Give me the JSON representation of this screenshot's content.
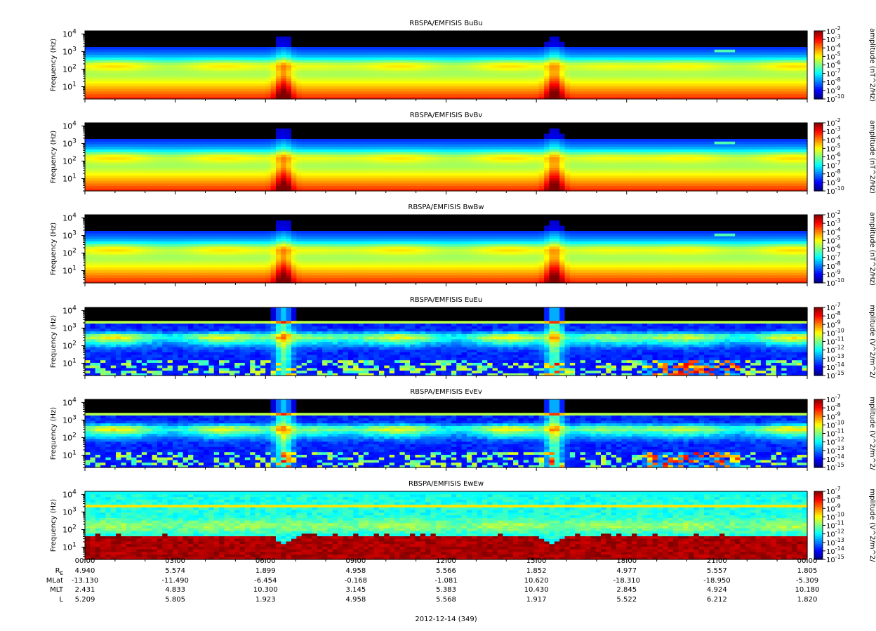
{
  "chart_data": [
    {
      "type": "heatmap",
      "title": "RBSPA/EMFISIS  BuBu",
      "ylabel": "Frequency (Hz)",
      "yscale": "log",
      "ylim": [
        2,
        15000
      ],
      "yticks": [
        {
          "v": 10,
          "label": "10",
          "sup": "1"
        },
        {
          "v": 100,
          "label": "10",
          "sup": "2"
        },
        {
          "v": 1000,
          "label": "10",
          "sup": "3"
        },
        {
          "v": 10000,
          "label": "10",
          "sup": "4"
        }
      ],
      "colorbar": {
        "label": "amplitude (nT^2/Hz)",
        "scale": "log",
        "range_exp": [
          -10,
          -2
        ],
        "ticks": [
          {
            "label": "10",
            "sup": "-2",
            "e": -2
          },
          {
            "label": "10",
            "sup": "-3",
            "e": -3
          },
          {
            "label": "10",
            "sup": "-4",
            "e": -4
          },
          {
            "label": "10",
            "sup": "-5",
            "e": -5
          },
          {
            "label": "10",
            "sup": "-6",
            "e": -6
          },
          {
            "label": "10",
            "sup": "-7",
            "e": -7
          },
          {
            "label": "10",
            "sup": "-8",
            "e": -8
          },
          {
            "label": "10",
            "sup": "-9",
            "e": -9
          },
          {
            "label": "10",
            "sup": "-10",
            "e": -10
          }
        ]
      }
    },
    {
      "type": "heatmap",
      "title": "RBSPA/EMFISIS  BvBv",
      "ylabel": "Frequency (Hz)",
      "yscale": "log",
      "ylim": [
        2,
        15000
      ],
      "yticks": [
        {
          "v": 10,
          "label": "10",
          "sup": "1"
        },
        {
          "v": 100,
          "label": "10",
          "sup": "2"
        },
        {
          "v": 1000,
          "label": "10",
          "sup": "3"
        },
        {
          "v": 10000,
          "label": "10",
          "sup": "4"
        }
      ],
      "colorbar": {
        "label": "amplitude (nT^2/Hz)",
        "scale": "log",
        "range_exp": [
          -10,
          -2
        ],
        "ticks": [
          {
            "label": "10",
            "sup": "-2",
            "e": -2
          },
          {
            "label": "10",
            "sup": "-3",
            "e": -3
          },
          {
            "label": "10",
            "sup": "-4",
            "e": -4
          },
          {
            "label": "10",
            "sup": "-5",
            "e": -5
          },
          {
            "label": "10",
            "sup": "-6",
            "e": -6
          },
          {
            "label": "10",
            "sup": "-7",
            "e": -7
          },
          {
            "label": "10",
            "sup": "-8",
            "e": -8
          },
          {
            "label": "10",
            "sup": "-9",
            "e": -9
          },
          {
            "label": "10",
            "sup": "-10",
            "e": -10
          }
        ]
      }
    },
    {
      "type": "heatmap",
      "title": "RBSPA/EMFISIS  BwBw",
      "ylabel": "Frequency (Hz)",
      "yscale": "log",
      "ylim": [
        2,
        15000
      ],
      "yticks": [
        {
          "v": 10,
          "label": "10",
          "sup": "1"
        },
        {
          "v": 100,
          "label": "10",
          "sup": "2"
        },
        {
          "v": 1000,
          "label": "10",
          "sup": "3"
        },
        {
          "v": 10000,
          "label": "10",
          "sup": "4"
        }
      ],
      "colorbar": {
        "label": "amplitude (nT^2/Hz)",
        "scale": "log",
        "range_exp": [
          -10,
          -2
        ],
        "ticks": [
          {
            "label": "10",
            "sup": "-2",
            "e": -2
          },
          {
            "label": "10",
            "sup": "-3",
            "e": -3
          },
          {
            "label": "10",
            "sup": "-4",
            "e": -4
          },
          {
            "label": "10",
            "sup": "-5",
            "e": -5
          },
          {
            "label": "10",
            "sup": "-6",
            "e": -6
          },
          {
            "label": "10",
            "sup": "-7",
            "e": -7
          },
          {
            "label": "10",
            "sup": "-8",
            "e": -8
          },
          {
            "label": "10",
            "sup": "-9",
            "e": -9
          },
          {
            "label": "10",
            "sup": "-10",
            "e": -10
          }
        ]
      }
    },
    {
      "type": "heatmap",
      "title": "RBSPA/EMFISIS  EuEu",
      "ylabel": "Frequency (Hz)",
      "yscale": "log",
      "ylim": [
        2,
        15000
      ],
      "yticks": [
        {
          "v": 10,
          "label": "10",
          "sup": "1"
        },
        {
          "v": 100,
          "label": "10",
          "sup": "2"
        },
        {
          "v": 1000,
          "label": "10",
          "sup": "3"
        },
        {
          "v": 10000,
          "label": "10",
          "sup": "4"
        }
      ],
      "colorbar": {
        "label": "mplitude (V^2/m^2/",
        "scale": "log",
        "range_exp": [
          -15,
          -7
        ],
        "ticks": [
          {
            "label": "10",
            "sup": "-7",
            "e": -7
          },
          {
            "label": "10",
            "sup": "-8",
            "e": -8
          },
          {
            "label": "10",
            "sup": "-9",
            "e": -9
          },
          {
            "label": "10",
            "sup": "-10",
            "e": -10
          },
          {
            "label": "10",
            "sup": "-11",
            "e": -11
          },
          {
            "label": "10",
            "sup": "-12",
            "e": -12
          },
          {
            "label": "10",
            "sup": "-13",
            "e": -13
          },
          {
            "label": "10",
            "sup": "-14",
            "e": -14
          },
          {
            "label": "10",
            "sup": "-15",
            "e": -15
          }
        ]
      }
    },
    {
      "type": "heatmap",
      "title": "RBSPA/EMFISIS  EvEv",
      "ylabel": "Frequency (Hz)",
      "yscale": "log",
      "ylim": [
        2,
        15000
      ],
      "yticks": [
        {
          "v": 10,
          "label": "10",
          "sup": "1"
        },
        {
          "v": 100,
          "label": "10",
          "sup": "2"
        },
        {
          "v": 1000,
          "label": "10",
          "sup": "3"
        },
        {
          "v": 10000,
          "label": "10",
          "sup": "4"
        }
      ],
      "colorbar": {
        "label": "mplitude (V^2/m^2/",
        "scale": "log",
        "range_exp": [
          -15,
          -7
        ],
        "ticks": [
          {
            "label": "10",
            "sup": "-7",
            "e": -7
          },
          {
            "label": "10",
            "sup": "-8",
            "e": -8
          },
          {
            "label": "10",
            "sup": "-9",
            "e": -9
          },
          {
            "label": "10",
            "sup": "-10",
            "e": -10
          },
          {
            "label": "10",
            "sup": "-11",
            "e": -11
          },
          {
            "label": "10",
            "sup": "-12",
            "e": -12
          },
          {
            "label": "10",
            "sup": "-13",
            "e": -13
          },
          {
            "label": "10",
            "sup": "-14",
            "e": -14
          },
          {
            "label": "10",
            "sup": "-15",
            "e": -15
          }
        ]
      }
    },
    {
      "type": "heatmap",
      "title": "RBSPA/EMFISIS  EwEw",
      "ylabel": "Frequency (Hz)",
      "yscale": "log",
      "ylim": [
        2,
        15000
      ],
      "yticks": [
        {
          "v": 10,
          "label": "10",
          "sup": "1"
        },
        {
          "v": 100,
          "label": "10",
          "sup": "2"
        },
        {
          "v": 1000,
          "label": "10",
          "sup": "3"
        },
        {
          "v": 10000,
          "label": "10",
          "sup": "4"
        }
      ],
      "colorbar": {
        "label": "mplitude (V^2/m^2/",
        "scale": "log",
        "range_exp": [
          -15,
          -7
        ],
        "ticks": [
          {
            "label": "10",
            "sup": "-7",
            "e": -7
          },
          {
            "label": "10",
            "sup": "-8",
            "e": -8
          },
          {
            "label": "10",
            "sup": "-9",
            "e": -9
          },
          {
            "label": "10",
            "sup": "-10",
            "e": -10
          },
          {
            "label": "10",
            "sup": "-11",
            "e": -11
          },
          {
            "label": "10",
            "sup": "-12",
            "e": -12
          },
          {
            "label": "10",
            "sup": "-13",
            "e": -13
          },
          {
            "label": "10",
            "sup": "-14",
            "e": -14
          },
          {
            "label": "10",
            "sup": "-15",
            "e": -15
          }
        ]
      }
    }
  ],
  "x_axis": {
    "date_label": "2012-12-14 (349)",
    "row_labels": [
      {
        "text": "R",
        "sub": "E"
      },
      {
        "text": "MLat",
        "sub": ""
      },
      {
        "text": "MLT",
        "sub": ""
      },
      {
        "text": "L",
        "sub": ""
      }
    ],
    "ticks": [
      {
        "time": "00:00",
        "hours": 0,
        "values": [
          "4.940",
          "-13.130",
          "2.431",
          "5.209"
        ]
      },
      {
        "time": "03:00",
        "hours": 3,
        "values": [
          "5.574",
          "-11.490",
          "4.833",
          "5.805"
        ]
      },
      {
        "time": "06:00",
        "hours": 6,
        "values": [
          "1.899",
          "-6.454",
          "10.300",
          "1.923"
        ]
      },
      {
        "time": "09:00",
        "hours": 9,
        "values": [
          "4.958",
          "-0.168",
          "3.145",
          "4.958"
        ]
      },
      {
        "time": "12:00",
        "hours": 12,
        "values": [
          "5.566",
          "-1.081",
          "5.383",
          "5.568"
        ]
      },
      {
        "time": "15:00",
        "hours": 15,
        "values": [
          "1.852",
          "10.620",
          "10.430",
          "1.917"
        ]
      },
      {
        "time": "18:00",
        "hours": 18,
        "values": [
          "4.977",
          "-18.310",
          "2.845",
          "5.522"
        ]
      },
      {
        "time": "21:00",
        "hours": 21,
        "values": [
          "5.557",
          "-18.950",
          "4.924",
          "6.212"
        ]
      },
      {
        "time": "00:00",
        "hours": 24,
        "values": [
          "1.805",
          "-5.309",
          "10.180",
          "1.820"
        ]
      }
    ]
  }
}
